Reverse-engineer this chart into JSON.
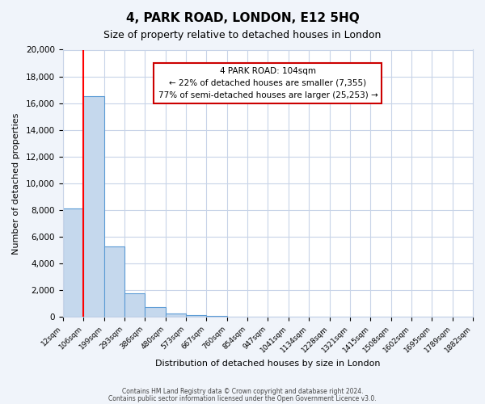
{
  "title": "4, PARK ROAD, LONDON, E12 5HQ",
  "subtitle": "Size of property relative to detached houses in London",
  "xlabel": "Distribution of detached houses by size in London",
  "ylabel": "Number of detached properties",
  "bin_edges": [
    12,
    106,
    199,
    293,
    386,
    480,
    573,
    667,
    760,
    854,
    947,
    1041,
    1134,
    1228,
    1321,
    1415,
    1508,
    1602,
    1695,
    1789,
    1882
  ],
  "bin_labels": [
    "12sqm",
    "106sqm",
    "199sqm",
    "293sqm",
    "386sqm",
    "480sqm",
    "573sqm",
    "667sqm",
    "760sqm",
    "854sqm",
    "947sqm",
    "1041sqm",
    "1134sqm",
    "1228sqm",
    "1321sqm",
    "1415sqm",
    "1508sqm",
    "1602sqm",
    "1695sqm",
    "1789sqm",
    "1882sqm"
  ],
  "counts": [
    8100,
    16500,
    5300,
    1750,
    750,
    250,
    150,
    100,
    0,
    0,
    0,
    0,
    0,
    0,
    0,
    0,
    0,
    0,
    0,
    0
  ],
  "ylim": [
    0,
    20000
  ],
  "yticks": [
    0,
    2000,
    4000,
    6000,
    8000,
    10000,
    12000,
    14000,
    16000,
    18000,
    20000
  ],
  "bar_color": "#c5d8ed",
  "bar_edge_color": "#5b9bd5",
  "red_line_x": 104,
  "annotation_title": "4 PARK ROAD: 104sqm",
  "annotation_line1": "← 22% of detached houses are smaller (7,355)",
  "annotation_line2": "77% of semi-detached houses are larger (25,253) →",
  "annotation_box_color": "#ffffff",
  "annotation_box_edge": "#cc0000",
  "footer1": "Contains HM Land Registry data © Crown copyright and database right 2024.",
  "footer2": "Contains public sector information licensed under the Open Government Licence v3.0.",
  "background_color": "#f0f4fa",
  "plot_bg_color": "#ffffff",
  "grid_color": "#c8d4e8"
}
